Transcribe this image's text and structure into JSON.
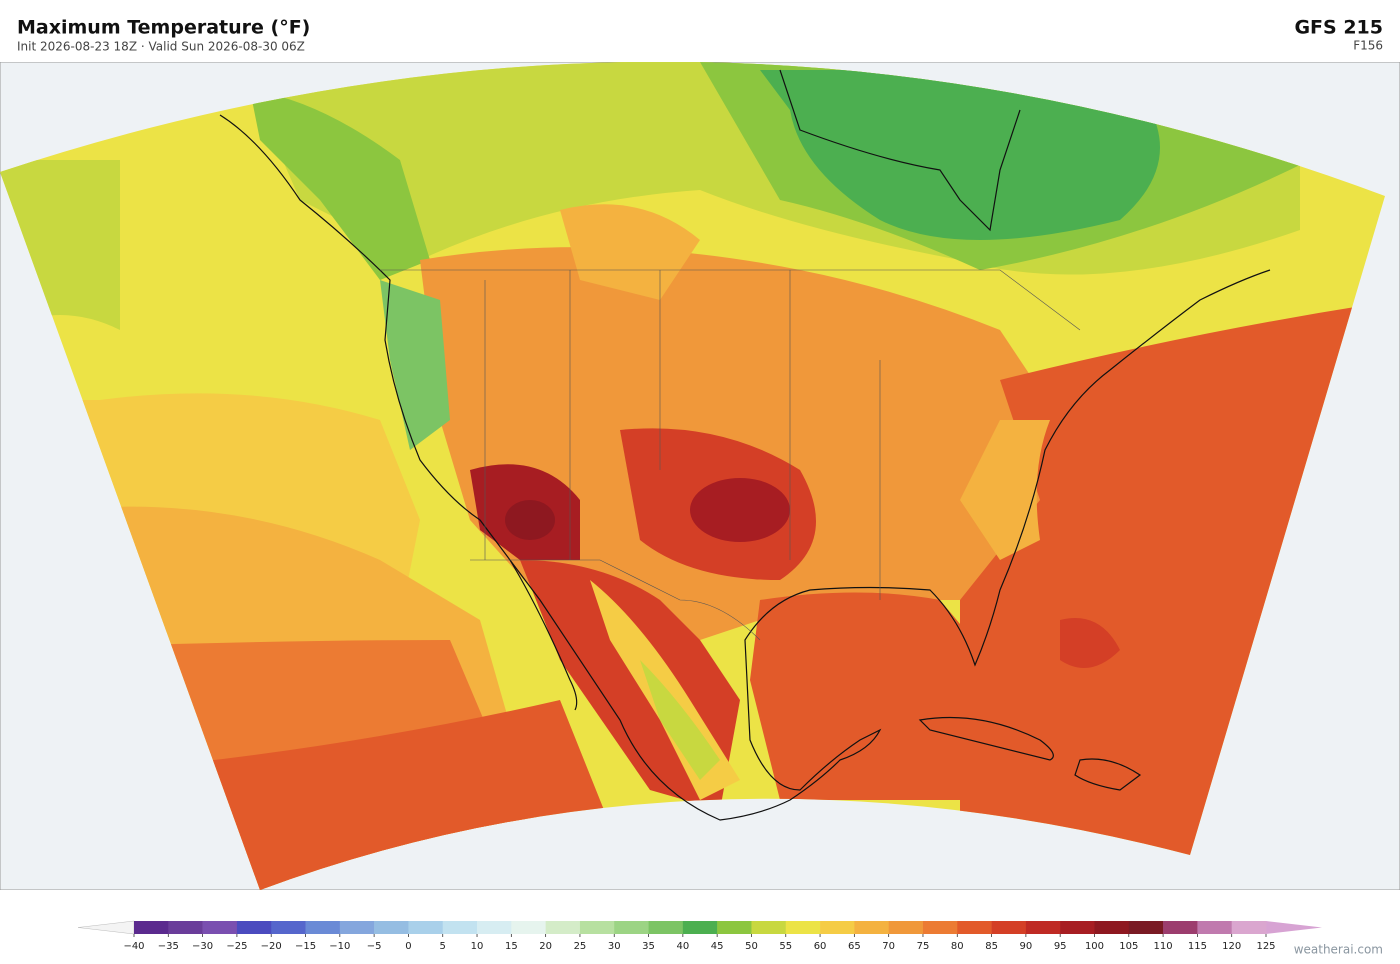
{
  "header": {
    "title": "Maximum Temperature  (°F)",
    "subtitle": "Init 2026-08-23 18Z  ·  Valid Sun 2026-08-30 06Z",
    "model": "GFS  215",
    "forecast_hour": "F156"
  },
  "colorbar": {
    "ticks": [
      {
        "value": -40,
        "label": "−40"
      },
      {
        "value": -35,
        "label": "−35"
      },
      {
        "value": -30,
        "label": "−30"
      },
      {
        "value": -25,
        "label": "−25"
      },
      {
        "value": -20,
        "label": "−20"
      },
      {
        "value": -15,
        "label": "−15"
      },
      {
        "value": -10,
        "label": "−10"
      },
      {
        "value": -5,
        "label": "−5"
      },
      0,
      5,
      10,
      15,
      20,
      25,
      30,
      35,
      40,
      45,
      50,
      55,
      60,
      65,
      70,
      75,
      80,
      85,
      90,
      95,
      100,
      105,
      110,
      115,
      120,
      125
    ],
    "colors": [
      "#5b2a8e",
      "#6a3d9a",
      "#7a4fb0",
      "#4b4bbf",
      "#5566cc",
      "#6a8ad6",
      "#84a6dd",
      "#95bde2",
      "#a9d0ea",
      "#c2e2f0",
      "#d7edf2",
      "#e6f4ee",
      "#d4ecc8",
      "#b7e0a0",
      "#9cd484",
      "#7cc464",
      "#4caf50",
      "#8cc63f",
      "#c8d840",
      "#ece346",
      "#f5cc45",
      "#f4b240",
      "#f0983a",
      "#ec7b33",
      "#e25a2a",
      "#d43f26",
      "#bf2a24",
      "#a71d22",
      "#8e1820",
      "#7a1a24",
      "#9c3d6e",
      "#c07aae",
      "#daa6cf"
    ],
    "under_color": "#f4f4f4",
    "over_color": "#d7a3d3"
  },
  "credit": "weatherai.com"
}
